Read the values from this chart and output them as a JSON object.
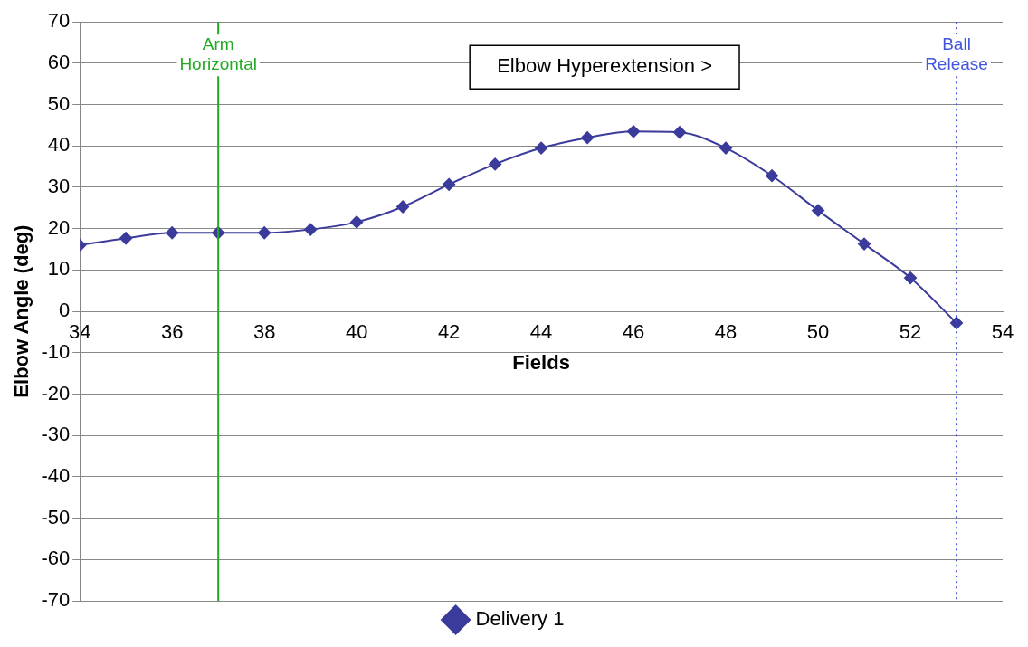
{
  "chart_data": {
    "type": "line",
    "xlabel": "Fields",
    "ylabel": "Elbow Angle (deg)",
    "x": [
      34,
      35,
      36,
      37,
      38,
      39,
      40,
      41,
      42,
      43,
      44,
      45,
      46,
      47,
      48,
      49,
      50,
      51,
      52,
      53
    ],
    "series": [
      {
        "name": "Delivery 1",
        "color": "#3b3b9c",
        "values": [
          16,
          17.7,
          19,
          19,
          19,
          19.8,
          21.6,
          25.3,
          30.7,
          35.6,
          39.5,
          42,
          43.5,
          43.3,
          39.5,
          32.8,
          24.4,
          16.3,
          8.1,
          -2.8
        ]
      }
    ],
    "xlim": [
      34,
      54
    ],
    "xticks": [
      34,
      36,
      38,
      40,
      42,
      44,
      46,
      48,
      50,
      52,
      54
    ],
    "ylim": [
      -70,
      70
    ],
    "yticks": [
      -70,
      -60,
      -50,
      -40,
      -30,
      -20,
      -10,
      0,
      10,
      20,
      30,
      40,
      50,
      60,
      70
    ],
    "grid": "y",
    "legend": "bottom",
    "marker": "diamond",
    "line_style": "solid",
    "ref_lines": [
      {
        "axis": "x",
        "value": 37,
        "label": "Arm Horizontal",
        "color": "#22aa22",
        "line_style": "solid"
      },
      {
        "axis": "x",
        "value": 53,
        "label": "Ball Release",
        "color": "#4455dd",
        "line_style": "dotted"
      }
    ],
    "annotations": [
      "Elbow Hyperextension >"
    ]
  }
}
